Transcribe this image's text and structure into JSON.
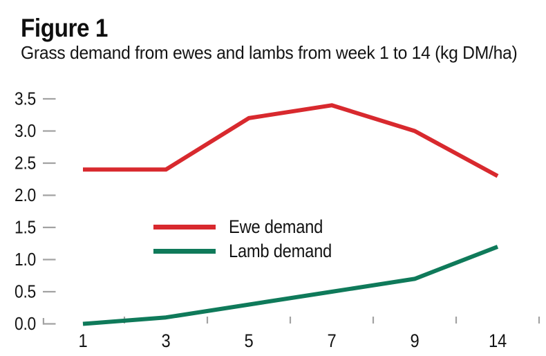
{
  "header": {
    "figure_label": "Figure 1",
    "subtitle": "Grass demand from ewes and lambs from week 1 to 14 (kg DM/ha)"
  },
  "chart_data": {
    "type": "line",
    "title": "Figure 1",
    "subtitle": "Grass demand from ewes and lambs from week 1 to 14 (kg DM/ha)",
    "categories": [
      1,
      3,
      5,
      7,
      9,
      14
    ],
    "x_tick_labels": [
      "1",
      "3",
      "5",
      "7",
      "9",
      "14"
    ],
    "x_spacing": "categorical-equal",
    "series": [
      {
        "name": "Ewe demand",
        "color": "#d8292e",
        "values": [
          2.4,
          2.4,
          3.2,
          3.4,
          3.0,
          2.3
        ]
      },
      {
        "name": "Lamb demand",
        "color": "#0f7a5a",
        "values": [
          0.0,
          0.1,
          0.3,
          0.5,
          0.7,
          1.2
        ]
      }
    ],
    "y_ticks": [
      0.0,
      0.5,
      1.0,
      1.5,
      2.0,
      2.5,
      3.0,
      3.5
    ],
    "y_tick_labels": [
      "0.0",
      "0.5",
      "1.0",
      "1.5",
      "2.0",
      "2.5",
      "3.0",
      "3.5"
    ],
    "ylim": [
      0,
      3.5
    ],
    "xlabel": "",
    "ylabel": "",
    "unit": "kg DM/ha",
    "grid": false,
    "legend_position": "inside-middle-left",
    "tick_color": "#a2a2a2",
    "text_color": "#141414",
    "background": "#ffffff"
  }
}
